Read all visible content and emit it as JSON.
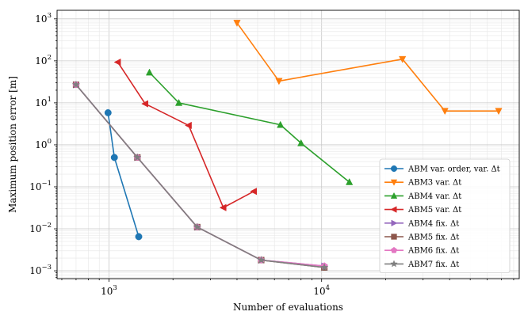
{
  "chart_data": {
    "type": "line",
    "xlabel": "Number of evaluations",
    "ylabel": "Maximum position error [m]",
    "xscale": "log",
    "yscale": "log",
    "xlim": [
      570,
      85000
    ],
    "ylim": [
      0.00065,
      1600
    ],
    "grid": true,
    "legend_position": "lower right",
    "x_ticks": [
      {
        "value": 1000,
        "base": "10",
        "exp": "3"
      },
      {
        "value": 10000,
        "base": "10",
        "exp": "4"
      }
    ],
    "y_ticks": [
      {
        "value": 0.001,
        "base": "10",
        "exp": "−3"
      },
      {
        "value": 0.01,
        "base": "10",
        "exp": "−2"
      },
      {
        "value": 0.1,
        "base": "10",
        "exp": "−1"
      },
      {
        "value": 1,
        "base": "10",
        "exp": "0"
      },
      {
        "value": 10,
        "base": "10",
        "exp": "1"
      },
      {
        "value": 100,
        "base": "10",
        "exp": "2"
      },
      {
        "value": 1000,
        "base": "10",
        "exp": "3"
      }
    ],
    "series": [
      {
        "name": "ABM var. order, var. Δt",
        "color": "#1f77b4",
        "marker": "circle",
        "x": [
          990,
          1060,
          1380
        ],
        "y": [
          5.8,
          0.5,
          0.0065
        ]
      },
      {
        "name": "ABM3 var. Δt",
        "color": "#ff7f0e",
        "marker": "triangle-down",
        "x": [
          4000,
          6300,
          24000,
          38000,
          68000
        ],
        "y": [
          800,
          33,
          110,
          6.4,
          6.4
        ]
      },
      {
        "name": "ABM4 var. Δt",
        "color": "#2ca02c",
        "marker": "triangle-up",
        "x": [
          1550,
          2130,
          6400,
          8000,
          13500
        ],
        "y": [
          53,
          10,
          3.0,
          1.1,
          0.13
        ]
      },
      {
        "name": "ABM5 var. Δt",
        "color": "#d62728",
        "marker": "triangle-left",
        "x": [
          1100,
          1480,
          2370,
          3450,
          4800
        ],
        "y": [
          93,
          9.5,
          2.9,
          0.032,
          0.078
        ]
      },
      {
        "name": "ABM4 fix. Δt",
        "color": "#9467bd",
        "marker": "triangle-right",
        "x": [
          700,
          1360,
          2600,
          5200,
          10300
        ],
        "y": [
          27,
          0.5,
          0.011,
          0.0018,
          0.0013
        ]
      },
      {
        "name": "ABM5 fix. Δt",
        "color": "#8c564b",
        "marker": "square",
        "x": [
          700,
          1360,
          2600,
          5200,
          10300
        ],
        "y": [
          27,
          0.5,
          0.011,
          0.0018,
          0.0012
        ]
      },
      {
        "name": "ABM6 fix. Δt",
        "color": "#e377c2",
        "marker": "pentagon",
        "x": [
          700,
          1360,
          2600,
          5200,
          10300
        ],
        "y": [
          27,
          0.5,
          0.011,
          0.0018,
          0.0013
        ]
      },
      {
        "name": "ABM7 fix. Δt",
        "color": "#7f7f7f",
        "marker": "star",
        "x": [
          700,
          1360,
          2600,
          5200,
          10300
        ],
        "y": [
          27,
          0.5,
          0.011,
          0.0018,
          0.0012
        ]
      }
    ]
  }
}
